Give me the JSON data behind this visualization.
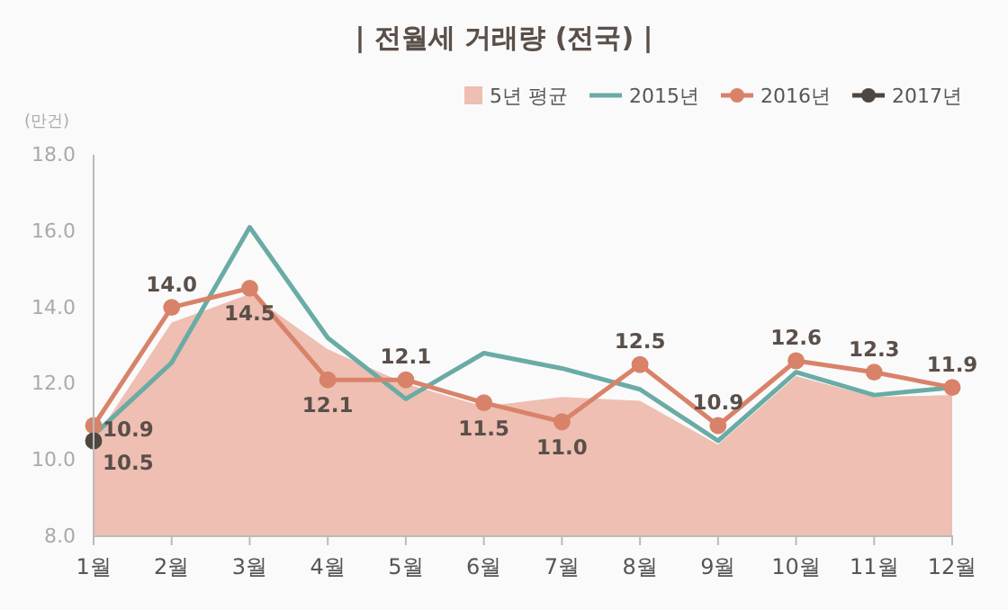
{
  "chart_data": {
    "type": "line",
    "title": "| 전월세 거래량 (전국) |",
    "ylabel": "(만건)",
    "categories": [
      "1월",
      "2월",
      "3월",
      "4월",
      "5월",
      "6월",
      "7월",
      "8월",
      "9월",
      "10월",
      "11월",
      "12월"
    ],
    "ylim": [
      8,
      18
    ],
    "yticks": [
      {
        "value": 8,
        "label": "8.0"
      },
      {
        "value": 10,
        "label": "10.0"
      },
      {
        "value": 12,
        "label": "12.0"
      },
      {
        "value": 14,
        "label": "14.0"
      },
      {
        "value": 16,
        "label": "16.0"
      },
      {
        "value": 18,
        "label": "18.0"
      }
    ],
    "grid": false,
    "legend": "top right",
    "marker": "circle",
    "line_style": "solid",
    "series": [
      {
        "name": "5년 평균",
        "type": "area",
        "marker": "none",
        "color": "#eebfb2",
        "values": [
          10.5,
          13.6,
          14.35,
          12.9,
          12.0,
          11.4,
          11.65,
          11.55,
          10.4,
          12.2,
          11.65,
          11.7
        ]
      },
      {
        "name": "2015년",
        "color": "#6aaba5",
        "marker": "none",
        "values": [
          10.65,
          12.55,
          16.1,
          13.2,
          11.6,
          12.8,
          12.4,
          11.85,
          10.5,
          12.3,
          11.7,
          11.9
        ]
      },
      {
        "name": "2016년",
        "color": "#d9826a",
        "values": [
          10.9,
          14.0,
          14.5,
          12.1,
          12.1,
          11.5,
          11.0,
          12.5,
          10.9,
          12.6,
          12.3,
          11.9
        ],
        "value_labels": [
          "10.9",
          "14.0",
          "14.5",
          "12.1",
          "12.1",
          "11.5",
          "11.0",
          "12.5",
          "10.9",
          "12.6",
          "12.3",
          "11.9"
        ]
      },
      {
        "name": "2017년",
        "color": "#4f4640",
        "values": [
          10.5,
          null,
          null,
          null,
          null,
          null,
          null,
          null,
          null,
          null,
          null,
          null
        ],
        "value_labels": [
          "10.5",
          null,
          null,
          null,
          null,
          null,
          null,
          null,
          null,
          null,
          null,
          null
        ]
      }
    ]
  }
}
